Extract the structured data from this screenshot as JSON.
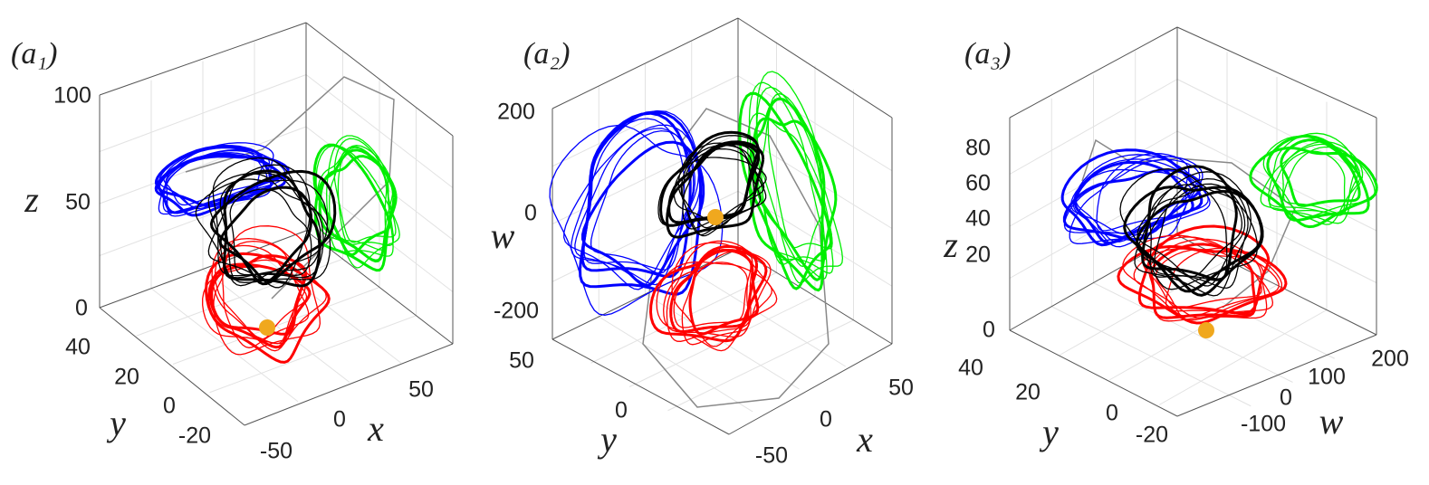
{
  "panels": [
    {
      "label": "(a₁)",
      "axes": [
        {
          "label": "z",
          "ticks": [
            100,
            50,
            0
          ]
        },
        {
          "label": "y",
          "ticks": [
            40,
            20,
            0,
            -20
          ]
        },
        {
          "label": "x",
          "ticks": [
            -50,
            0,
            50
          ]
        }
      ]
    },
    {
      "label": "(a₂)",
      "axes": [
        {
          "label": "w",
          "ticks": [
            200,
            0,
            -200
          ]
        },
        {
          "label": "y",
          "ticks": [
            50,
            0
          ]
        },
        {
          "label": "x",
          "ticks": [
            -50,
            0,
            50
          ]
        }
      ]
    },
    {
      "label": "(a₃)",
      "axes": [
        {
          "label": "z",
          "ticks": [
            80,
            60,
            40,
            20,
            0
          ]
        },
        {
          "label": "y",
          "ticks": [
            40,
            20,
            0,
            -20
          ]
        },
        {
          "label": "w",
          "ticks": [
            -100,
            0,
            100,
            200
          ]
        }
      ]
    }
  ]
}
